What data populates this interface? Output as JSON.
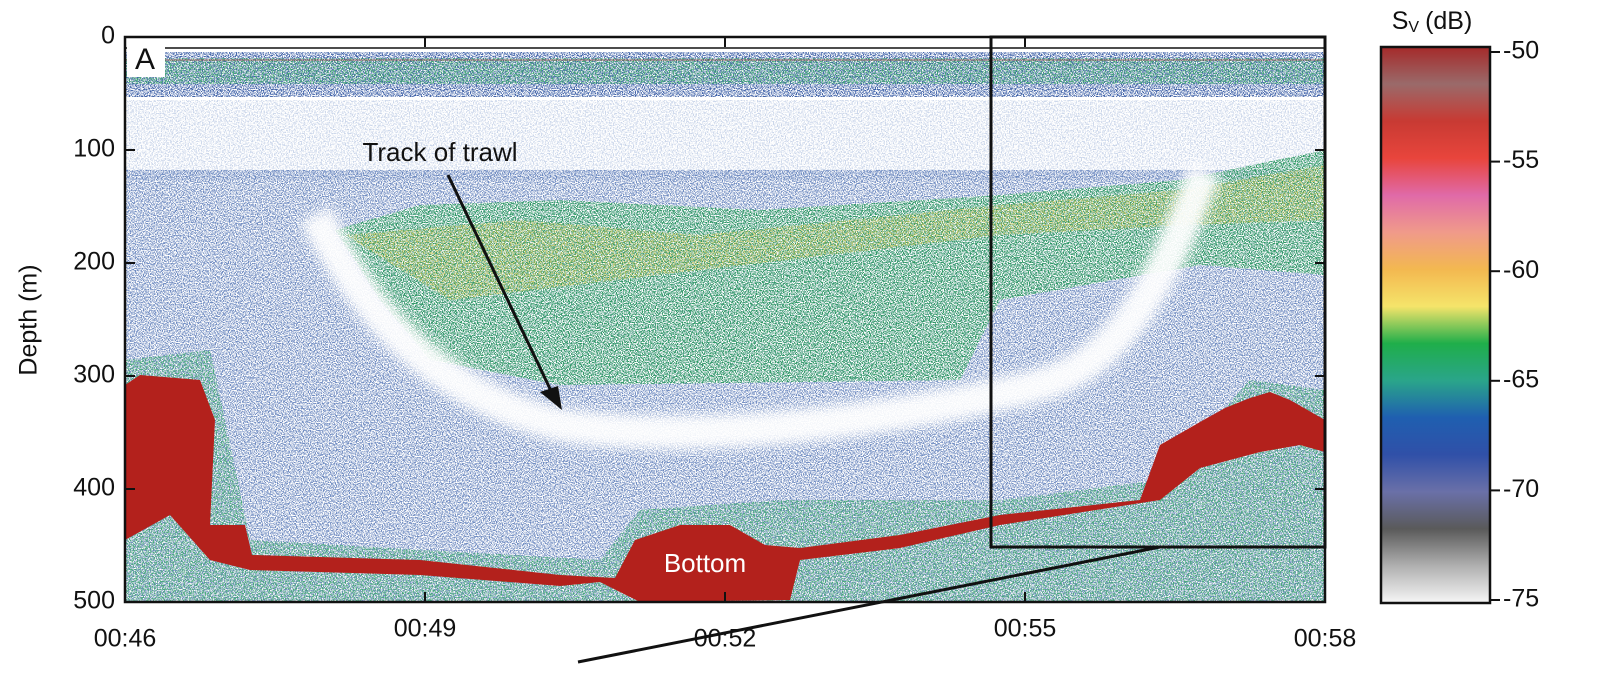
{
  "chart_data": {
    "type": "echogram",
    "panel_label": "A",
    "ylabel": "Depth (m)",
    "ylim": [
      500,
      0
    ],
    "yticks": [
      0,
      100,
      200,
      300,
      400,
      500
    ],
    "xlim": [
      46,
      58
    ],
    "xticks": [
      {
        "value": 46,
        "label": "00:46"
      },
      {
        "value": 49,
        "label": "00:49"
      },
      {
        "value": 52,
        "label": "00:52"
      },
      {
        "value": 55,
        "label": "00:55"
      },
      {
        "value": 58,
        "label": "00:58"
      }
    ],
    "annotations": [
      {
        "text": "Track of trawl"
      },
      {
        "text": "Bottom"
      }
    ],
    "colorbar": {
      "symbol": "S",
      "subscript": "V",
      "unit": "(dB)",
      "clim": [
        -75,
        -50
      ],
      "ticks": [
        -50,
        -55,
        -60,
        -65,
        -70,
        -75
      ],
      "colors": [
        "#a52a2a",
        "#9a6a6a",
        "#c83a33",
        "#e8453c",
        "#e06aa8",
        "#f09a8a",
        "#f3b850",
        "#f5e46a",
        "#1fae4a",
        "#2aa58a",
        "#1f5fb0",
        "#3050a8",
        "#6a70a8",
        "#5a5a5a",
        "#b0b0b0",
        "#f6f6f6"
      ]
    }
  }
}
